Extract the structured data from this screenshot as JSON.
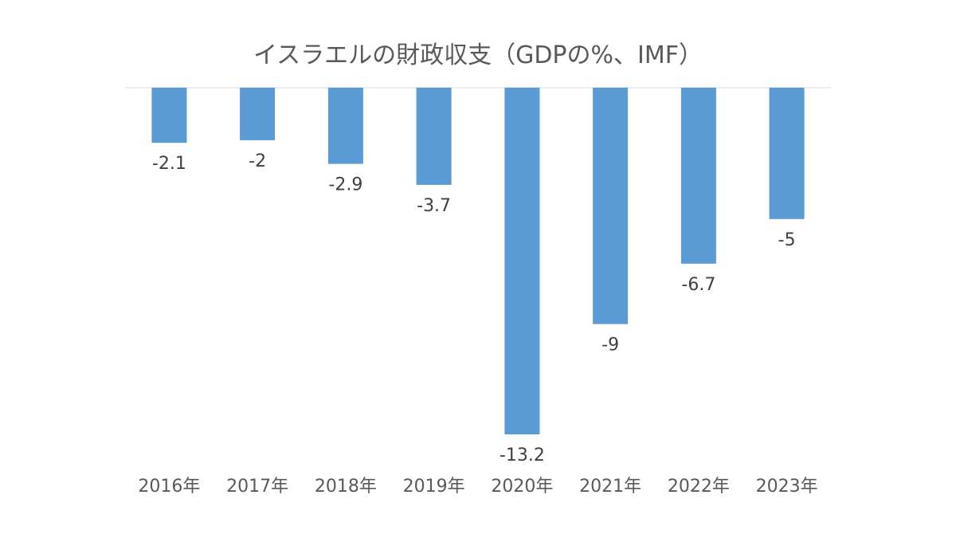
{
  "chart_data": {
    "type": "bar",
    "title": "イスラエルの財政収支（GDPの%、IMF）",
    "categories": [
      "2016年",
      "2017年",
      "2018年",
      "2019年",
      "2020年",
      "2021年",
      "2022年",
      "2023年"
    ],
    "values": [
      -2.1,
      -2,
      -2.9,
      -3.7,
      -13.2,
      -9,
      -6.7,
      -5
    ],
    "data_labels": [
      "-2.1",
      "-2",
      "-2.9",
      "-3.7",
      "-13.2",
      "-9",
      "-6.7",
      "-5"
    ],
    "xlabel": "",
    "ylabel": "",
    "ylim": [
      -13.2,
      0
    ],
    "grid": false,
    "legend": "none",
    "colors": {
      "bar": "#5b9bd5",
      "axis": "#d9d9d9",
      "title": "#595959",
      "label": "#404040"
    }
  }
}
